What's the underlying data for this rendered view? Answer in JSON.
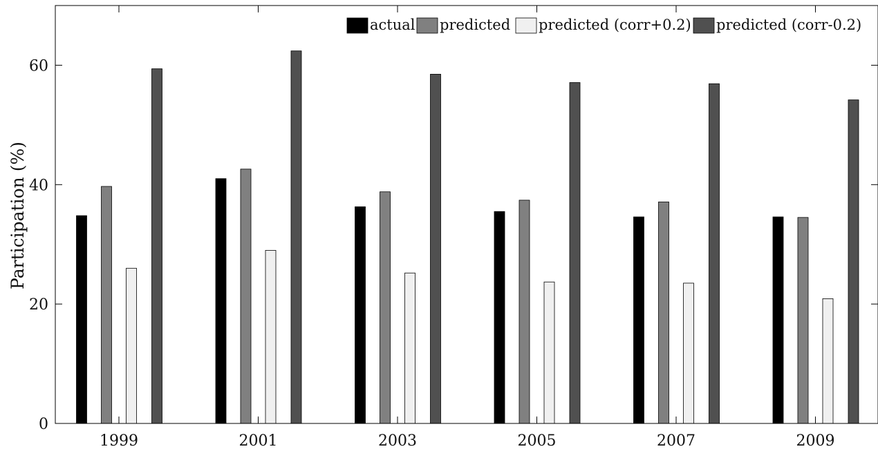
{
  "chart_data": {
    "type": "bar",
    "title": "",
    "xlabel": "",
    "ylabel": "Participation (%)",
    "ylim": [
      0,
      70
    ],
    "yticks": [
      0,
      20,
      40,
      60
    ],
    "grid": false,
    "legend_position": "top-right",
    "categories": [
      "1999",
      "2001",
      "2003",
      "2005",
      "2007",
      "2009"
    ],
    "series": [
      {
        "name": "actual",
        "color": "#000000",
        "values": [
          34.8,
          41.0,
          36.3,
          35.5,
          34.6,
          34.6
        ]
      },
      {
        "name": "predicted",
        "color": "#808080",
        "values": [
          39.7,
          42.6,
          38.8,
          37.4,
          37.1,
          34.5
        ]
      },
      {
        "name": "predicted (corr+0.2)",
        "color": "#f0f0f0",
        "values": [
          26.0,
          29.0,
          25.2,
          23.7,
          23.5,
          20.9
        ]
      },
      {
        "name": "predicted (corr-0.2)",
        "color": "#505050",
        "values": [
          59.4,
          62.4,
          58.5,
          57.1,
          56.9,
          54.2
        ]
      }
    ]
  }
}
